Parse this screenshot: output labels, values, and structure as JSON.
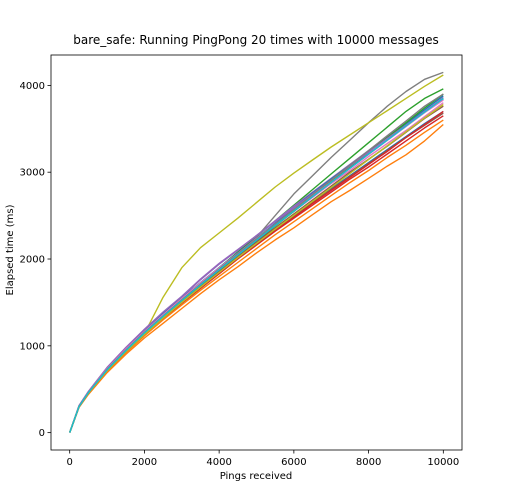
{
  "chart_data": {
    "type": "line",
    "title": "bare_safe: Running PingPong 20 times with 10000 messages",
    "xlabel": "Pings received",
    "ylabel": "Elapsed time (ms)",
    "xlim": [
      -500,
      10500
    ],
    "ylim": [
      -200,
      4350
    ],
    "x_ticks": [
      0,
      2000,
      4000,
      6000,
      8000,
      10000
    ],
    "y_ticks": [
      0,
      1000,
      2000,
      3000,
      4000
    ],
    "x_tick_labels": [
      "0",
      "2000",
      "4000",
      "6000",
      "8000",
      "10000"
    ],
    "y_tick_labels": [
      "0",
      "1000",
      "2000",
      "3000",
      "4000"
    ],
    "grid": false,
    "legend": "none",
    "x": [
      0,
      250,
      500,
      1000,
      1500,
      2000,
      2500,
      3000,
      3500,
      4000,
      4500,
      5000,
      5500,
      6000,
      6500,
      7000,
      7500,
      8000,
      8500,
      9000,
      9500,
      10000
    ],
    "series": [
      {
        "color": "#1f77b4",
        "values": [
          0,
          300,
          460,
          720,
          940,
          1140,
          1330,
          1510,
          1690,
          1860,
          2030,
          2190,
          2350,
          2500,
          2660,
          2810,
          2960,
          3110,
          3260,
          3410,
          3560,
          3700
        ]
      },
      {
        "color": "#ff7f0e",
        "values": [
          0,
          290,
          440,
          690,
          900,
          1090,
          1260,
          1430,
          1600,
          1760,
          1910,
          2070,
          2220,
          2360,
          2510,
          2660,
          2790,
          2930,
          3070,
          3200,
          3360,
          3550
        ]
      },
      {
        "color": "#2ca02c",
        "values": [
          0,
          300,
          460,
          720,
          940,
          1150,
          1340,
          1520,
          1710,
          1900,
          2080,
          2260,
          2440,
          2620,
          2800,
          2980,
          3160,
          3340,
          3520,
          3700,
          3850,
          3960
        ]
      },
      {
        "color": "#d62728",
        "values": [
          0,
          300,
          455,
          710,
          925,
          1125,
          1310,
          1490,
          1660,
          1830,
          2000,
          2160,
          2320,
          2470,
          2620,
          2770,
          2920,
          3060,
          3210,
          3360,
          3510,
          3650
        ]
      },
      {
        "color": "#9467bd",
        "values": [
          0,
          310,
          470,
          740,
          970,
          1180,
          1380,
          1560,
          1760,
          1940,
          2100,
          2270,
          2440,
          2610,
          2770,
          2930,
          3090,
          3250,
          3410,
          3560,
          3700,
          3850
        ]
      },
      {
        "color": "#8c564b",
        "values": [
          0,
          300,
          460,
          715,
          935,
          1130,
          1320,
          1500,
          1675,
          1845,
          2010,
          2175,
          2340,
          2490,
          2650,
          2800,
          2950,
          3100,
          3250,
          3400,
          3540,
          3680
        ]
      },
      {
        "color": "#e377c2",
        "values": [
          0,
          305,
          465,
          730,
          955,
          1160,
          1355,
          1540,
          1720,
          1890,
          2060,
          2225,
          2390,
          2550,
          2710,
          2870,
          3020,
          3180,
          3330,
          3480,
          3640,
          3800
        ]
      },
      {
        "color": "#7f7f7f",
        "values": [
          0,
          300,
          460,
          720,
          940,
          1140,
          1330,
          1520,
          1700,
          1880,
          2060,
          2250,
          2500,
          2750,
          2960,
          3170,
          3370,
          3570,
          3760,
          3930,
          4070,
          4150
        ]
      },
      {
        "color": "#bcbd22",
        "values": [
          0,
          295,
          455,
          715,
          935,
          1140,
          1560,
          1900,
          2130,
          2300,
          2470,
          2650,
          2830,
          2990,
          3140,
          3290,
          3430,
          3570,
          3710,
          3850,
          3990,
          4120
        ]
      },
      {
        "color": "#17becf",
        "values": [
          0,
          300,
          465,
          730,
          955,
          1160,
          1350,
          1530,
          1710,
          1880,
          2050,
          2220,
          2390,
          2560,
          2730,
          2890,
          3050,
          3210,
          3370,
          3530,
          3690,
          3840
        ]
      },
      {
        "color": "#1f77b4",
        "values": [
          0,
          305,
          470,
          740,
          970,
          1175,
          1370,
          1550,
          1730,
          1900,
          2070,
          2240,
          2410,
          2590,
          2760,
          2920,
          3080,
          3240,
          3400,
          3560,
          3720,
          3880
        ]
      },
      {
        "color": "#ff7f0e",
        "values": [
          0,
          295,
          450,
          705,
          920,
          1115,
          1300,
          1470,
          1640,
          1800,
          1960,
          2120,
          2280,
          2430,
          2580,
          2730,
          2880,
          3020,
          3170,
          3310,
          3460,
          3600
        ]
      },
      {
        "color": "#2ca02c",
        "values": [
          0,
          300,
          460,
          725,
          945,
          1150,
          1340,
          1520,
          1700,
          1870,
          2040,
          2210,
          2380,
          2550,
          2720,
          2890,
          3060,
          3230,
          3400,
          3570,
          3740,
          3900
        ]
      },
      {
        "color": "#d62728",
        "values": [
          0,
          300,
          460,
          715,
          930,
          1130,
          1320,
          1500,
          1670,
          1840,
          2010,
          2170,
          2330,
          2480,
          2640,
          2790,
          2940,
          3090,
          3240,
          3400,
          3550,
          3700
        ]
      },
      {
        "color": "#9467bd",
        "values": [
          0,
          310,
          475,
          750,
          980,
          1190,
          1390,
          1570,
          1770,
          1950,
          2110,
          2270,
          2430,
          2590,
          2750,
          2910,
          3070,
          3230,
          3390,
          3540,
          3700,
          3860
        ]
      },
      {
        "color": "#8c564b",
        "values": [
          0,
          300,
          460,
          720,
          940,
          1140,
          1330,
          1510,
          1685,
          1860,
          2030,
          2200,
          2360,
          2520,
          2680,
          2840,
          3000,
          3150,
          3300,
          3460,
          3620,
          3760
        ]
      },
      {
        "color": "#e377c2",
        "values": [
          0,
          300,
          465,
          735,
          960,
          1165,
          1360,
          1545,
          1725,
          1895,
          2065,
          2235,
          2400,
          2565,
          2725,
          2885,
          3045,
          3205,
          3365,
          3525,
          3685,
          3830
        ]
      },
      {
        "color": "#7f7f7f",
        "values": [
          0,
          300,
          462,
          728,
          950,
          1155,
          1345,
          1530,
          1710,
          1885,
          2060,
          2230,
          2400,
          2570,
          2740,
          2910,
          3080,
          3250,
          3420,
          3590,
          3760,
          3900
        ]
      },
      {
        "color": "#bcbd22",
        "values": [
          0,
          300,
          455,
          712,
          930,
          1130,
          1320,
          1500,
          1675,
          1845,
          2015,
          2180,
          2345,
          2505,
          2665,
          2825,
          2985,
          3145,
          3305,
          3465,
          3625,
          3780
        ]
      },
      {
        "color": "#17becf",
        "values": [
          0,
          300,
          460,
          722,
          942,
          1148,
          1340,
          1522,
          1702,
          1875,
          2045,
          2215,
          2385,
          2552,
          2718,
          2882,
          3045,
          3208,
          3370,
          3532,
          3692,
          3850
        ]
      }
    ]
  }
}
